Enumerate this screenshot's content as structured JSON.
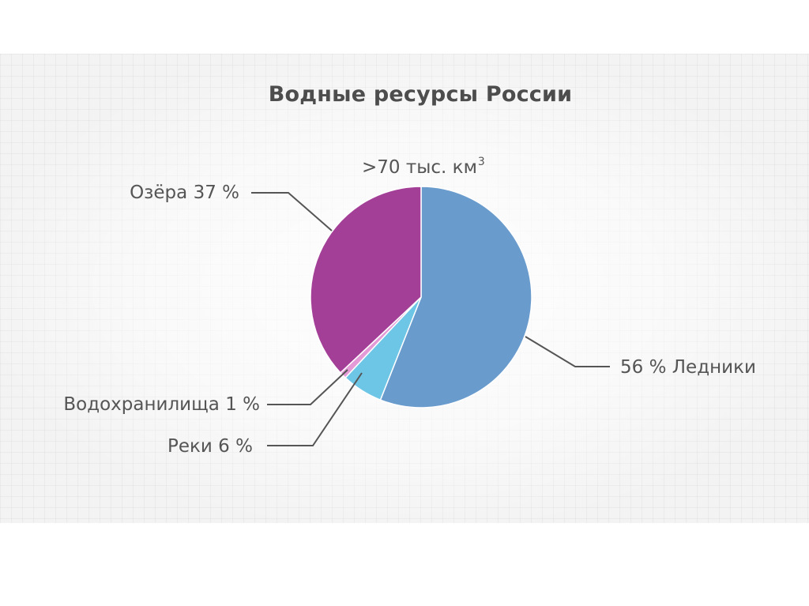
{
  "chart_data": {
    "type": "pie",
    "title": "Водные ресурсы России",
    "subtitle_main": ">70 тыс. км",
    "subtitle_sup": "3",
    "slices": [
      {
        "name": "Ледники",
        "value": 56,
        "label": "56 % Ледники",
        "color": "#6a9bcd"
      },
      {
        "name": "Реки",
        "value": 6,
        "label": "Реки 6 %",
        "color": "#6ec6e6"
      },
      {
        "name": "Водохранилища",
        "value": 1,
        "label": "Водохранилища 1 %",
        "color": "#e39ad6"
      },
      {
        "name": "Озёра",
        "value": 37,
        "label": "Озёра 37 %",
        "color": "#a43f98"
      }
    ]
  }
}
